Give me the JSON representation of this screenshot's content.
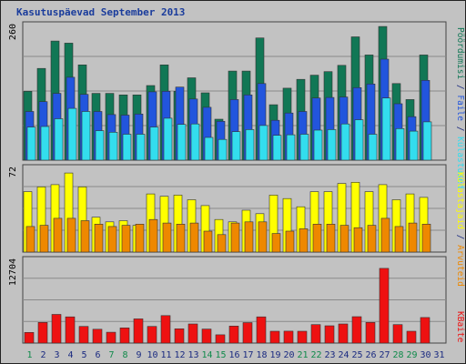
{
  "chart_data": {
    "type": "bar",
    "title": "Kasutuspäevad September 2013",
    "days": [
      "1",
      "2",
      "3",
      "4",
      "5",
      "6",
      "7",
      "8",
      "9",
      "10",
      "11",
      "12",
      "13",
      "14",
      "15",
      "16",
      "17",
      "18",
      "19",
      "20",
      "21",
      "22",
      "23",
      "24",
      "25",
      "26",
      "27",
      "28",
      "29",
      "30",
      "31"
    ],
    "weekend_days": [
      1,
      7,
      8,
      14,
      15,
      21,
      22,
      28,
      29
    ],
    "panels": [
      {
        "id": "top",
        "max_label": "260",
        "ymax": 260,
        "series": [
          {
            "name": "Pöördumisi",
            "color": "#117755",
            "values": [
              133,
              177,
              230,
              226,
              184,
              129,
              129,
              126,
              126,
              144,
              184,
              133,
              159,
              130,
              79,
              172,
              172,
              236,
              107,
              139,
              156,
              164,
              171,
              183,
              238,
              203,
              258,
              148,
              117,
              203,
              0
            ]
          },
          {
            "name": "Faile",
            "color": "#2255dd",
            "values": [
              94,
              113,
              129,
              160,
              127,
              94,
              88,
              87,
              89,
              132,
              133,
              141,
              118,
              102,
              75,
              117,
              126,
              148,
              77,
              91,
              94,
              120,
              121,
              122,
              140,
              147,
              195,
              109,
              84,
              154,
              0
            ]
          },
          {
            "name": "Külastused",
            "color": "#33ddee",
            "values": [
              64,
              65,
              80,
              100,
              94,
              57,
              54,
              50,
              50,
              64,
              81,
              69,
              70,
              44,
              40,
              55,
              59,
              67,
              48,
              49,
              50,
              58,
              59,
              70,
              78,
              50,
              120,
              61,
              56,
              74,
              0
            ]
          }
        ]
      },
      {
        "id": "middle",
        "max_label": "72",
        "ymax": 72,
        "series": [
          {
            "name": "Külastajaid",
            "color": "#ffff00",
            "values": [
              52,
              56,
              58,
              68,
              56,
              30,
              26,
              27,
              23,
              50,
              48,
              49,
              45,
              40,
              28,
              26,
              36,
              33,
              49,
              46,
              39,
              52,
              52,
              59,
              60,
              52,
              58,
              45,
              50,
              47,
              0
            ]
          },
          {
            "name": "Arvuteid",
            "color": "#ee8800",
            "values": [
              22,
              23,
              29,
              29,
              27,
              24,
              22,
              23,
              24,
              28,
              25,
              24,
              25,
              18,
              15,
              25,
              26,
              26,
              16,
              18,
              20,
              24,
              24,
              23,
              21,
              23,
              29,
              22,
              25,
              24,
              0
            ]
          }
        ]
      },
      {
        "id": "bottom",
        "max_label": "12704",
        "ymax": 12704,
        "series": [
          {
            "name": "KBaite",
            "color": "#ee1111",
            "values": [
              1634,
              3170,
              4393,
              4014,
              2550,
              2118,
              1664,
              2333,
              3718,
              2550,
              4212,
              2191,
              2925,
              2146,
              1270,
              2608,
              3145,
              4014,
              1816,
              1822,
              1816,
              2839,
              2655,
              2925,
              4052,
              3170,
              11460,
              2833,
              1816,
              3921,
              0
            ]
          }
        ]
      }
    ]
  }
}
